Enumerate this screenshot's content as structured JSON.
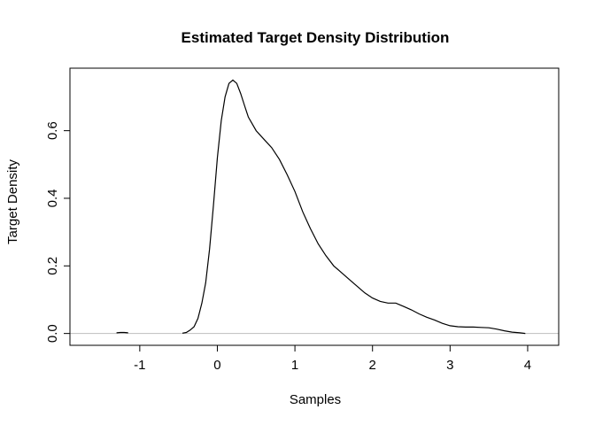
{
  "chart_data": {
    "type": "line",
    "title": "Estimated Target Density Distribution",
    "xlabel": "Samples",
    "ylabel": "Target Density",
    "xlim": [
      -1.9,
      4.4
    ],
    "ylim": [
      -0.035,
      0.785
    ],
    "x_ticks": [
      -1,
      0,
      1,
      2,
      3,
      4
    ],
    "y_ticks": [
      0.0,
      0.2,
      0.4,
      0.6
    ],
    "x_tick_labels": [
      "-1",
      "0",
      "1",
      "2",
      "3",
      "4"
    ],
    "y_tick_labels": [
      "0.0",
      "0.2",
      "0.4",
      "0.6"
    ],
    "grid": false,
    "legend": "none",
    "baseline": 0,
    "colors": {
      "line": "#000000",
      "baseline": "#bebebe",
      "frame": "#000000"
    },
    "series": [
      {
        "x": [
          -1.3,
          -1.25,
          -1.2,
          -1.15,
          -0.45,
          -0.4,
          -0.35,
          -0.3,
          -0.25,
          -0.2,
          -0.15,
          -0.1,
          -0.05,
          0.0,
          0.05,
          0.1,
          0.15,
          0.2,
          0.25,
          0.3,
          0.35,
          0.4,
          0.5,
          0.6,
          0.7,
          0.8,
          0.9,
          1.0,
          1.1,
          1.2,
          1.3,
          1.4,
          1.5,
          1.6,
          1.7,
          1.8,
          1.9,
          2.0,
          2.1,
          2.2,
          2.3,
          2.4,
          2.5,
          2.6,
          2.7,
          2.8,
          2.9,
          3.0,
          3.1,
          3.2,
          3.3,
          3.4,
          3.5,
          3.6,
          3.7,
          3.8,
          3.9,
          3.97
        ],
        "y": [
          0.002,
          0.003,
          0.003,
          0.002,
          0.001,
          0.003,
          0.01,
          0.02,
          0.045,
          0.09,
          0.15,
          0.25,
          0.38,
          0.52,
          0.63,
          0.7,
          0.74,
          0.75,
          0.74,
          0.71,
          0.675,
          0.64,
          0.6,
          0.575,
          0.55,
          0.515,
          0.47,
          0.42,
          0.36,
          0.31,
          0.265,
          0.23,
          0.2,
          0.18,
          0.16,
          0.14,
          0.12,
          0.105,
          0.095,
          0.09,
          0.09,
          0.08,
          0.07,
          0.058,
          0.048,
          0.04,
          0.03,
          0.023,
          0.02,
          0.019,
          0.019,
          0.018,
          0.017,
          0.013,
          0.008,
          0.004,
          0.002,
          0.0
        ]
      }
    ]
  }
}
